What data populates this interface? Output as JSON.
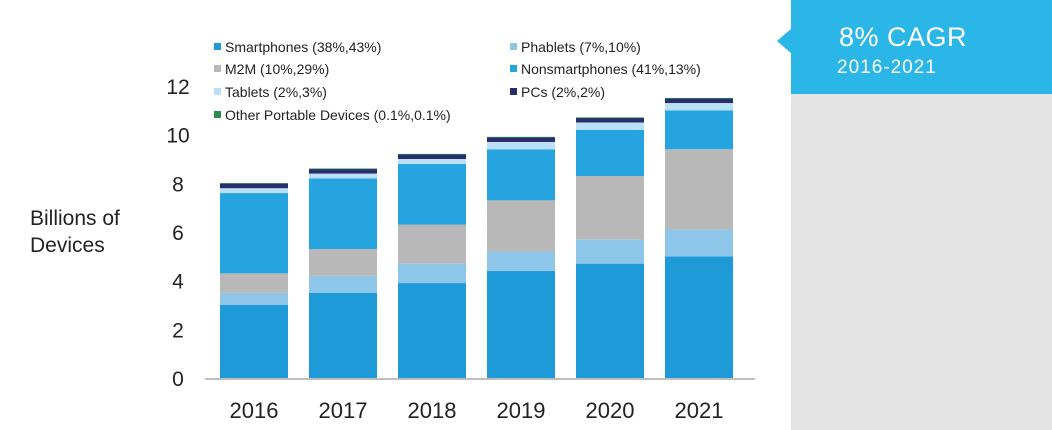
{
  "chart_data": {
    "type": "bar",
    "stacked": true,
    "categories": [
      "2016",
      "2017",
      "2018",
      "2019",
      "2020",
      "2021"
    ],
    "ylabel": "Billions of Devices",
    "ylabel_lines": [
      "Billions of",
      "Devices"
    ],
    "ylim": [
      0,
      12
    ],
    "yticks": [
      0,
      2,
      4,
      6,
      8,
      10,
      12
    ],
    "grid": false,
    "legend_position": "top",
    "series": [
      {
        "name": "Smartphones (38%,43%)",
        "color": "#1f9ad8",
        "values": [
          3.0,
          3.5,
          3.9,
          4.4,
          4.7,
          5.0
        ]
      },
      {
        "name": "Phablets (7%,10%)",
        "color": "#8ec6ea",
        "values": [
          0.5,
          0.7,
          0.8,
          0.8,
          1.0,
          1.1
        ]
      },
      {
        "name": "M2M (10%,29%)",
        "color": "#b8b8b8",
        "values": [
          0.8,
          1.1,
          1.6,
          2.1,
          2.6,
          3.3
        ]
      },
      {
        "name": "Nonsmartphones (41%,13%)",
        "color": "#26a4df",
        "values": [
          3.3,
          2.9,
          2.5,
          2.1,
          1.9,
          1.6
        ]
      },
      {
        "name": "Tablets (2%,3%)",
        "color": "#b9e0f6",
        "values": [
          0.2,
          0.2,
          0.2,
          0.3,
          0.3,
          0.3
        ]
      },
      {
        "name": "PCs (2%,2%)",
        "color": "#2a2c6e",
        "values": [
          0.2,
          0.2,
          0.2,
          0.2,
          0.2,
          0.2
        ]
      },
      {
        "name": "Other Portable Devices (0.1%,0.1%)",
        "color": "#2d8a4e",
        "values": [
          0.01,
          0.01,
          0.01,
          0.01,
          0.01,
          0.01
        ]
      }
    ]
  },
  "cagr": {
    "title": "8% CAGR",
    "subtitle": "2016-2021"
  },
  "colors": {
    "accent": "#2bb6e8",
    "panel": "#e3e3e3"
  }
}
